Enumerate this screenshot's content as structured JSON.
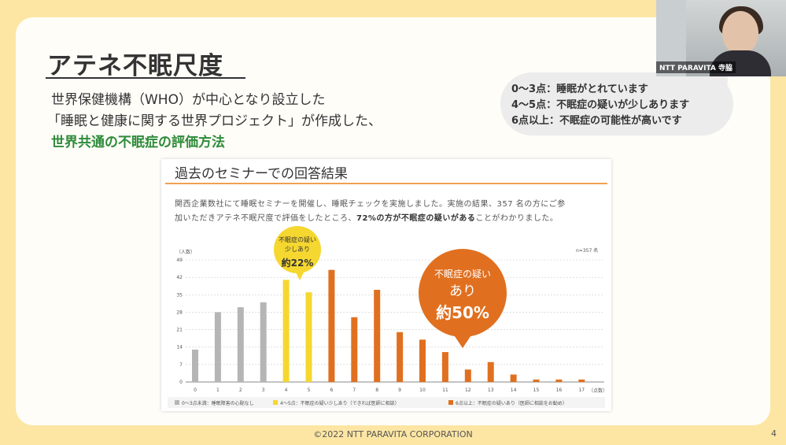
{
  "slide": {
    "title": "アテネ不眠尺度",
    "desc_line1": "世界保健機構（WHO）が中心となり設立した",
    "desc_line2": "「睡眠と健康に関する世界プロジェクト」が作成した、",
    "desc_line3": "世界共通の不眠症の評価方法",
    "footer": "©2022 NTT PARAVITA CORPORATION",
    "page_number": "4"
  },
  "scores": {
    "line1": "0～3点：睡眠がとれています",
    "line2": "4～5点：不眠症の疑いが少しあります",
    "line3": "6点以上：不眠症の可能性が高いです"
  },
  "video": {
    "name": "NTT PARAVITA 寺脇"
  },
  "panel": {
    "title": "過去のセミナーでの回答結果",
    "text1": "関西企業数社にて睡眠セミナーを開催し、睡眠チェックを実施しました。実施の結果、357 名の方にご参",
    "text2_pre": "加いただきアテネ不眠尺度で評価をしたところ、",
    "text2_bold": "72%の方が不眠症の疑いがある",
    "text2_post": "ことがわかりました。",
    "callout_small_l1": "不眠症の疑い",
    "callout_small_l2": "少しあり",
    "callout_small_pct": "約22%",
    "callout_big_l1": "不眠症の疑い",
    "callout_big_l2": "あり",
    "callout_big_pct": "約50%",
    "legend_gray": "0～3点未満：睡眠障害の心配なし",
    "legend_yellow": "4～5点：不眠症の疑い少しあり（できれば医師に相談）",
    "legend_orange": "6点以上：不眠症の疑いあり（医師に相談をお勧め）"
  },
  "chart_data": {
    "type": "bar",
    "ylabel": "（人数）",
    "xlabel": "（点数）",
    "n_label": "n=357 名",
    "ylim": [
      0,
      49
    ],
    "yticks": [
      0,
      7,
      14,
      21,
      28,
      35,
      42,
      49
    ],
    "categories": [
      "0",
      "1",
      "2",
      "3",
      "4",
      "5",
      "6",
      "7",
      "8",
      "9",
      "10",
      "11",
      "12",
      "13",
      "14",
      "15",
      "16",
      "17"
    ],
    "values": [
      13,
      28,
      30,
      32,
      41,
      36,
      45,
      26,
      37,
      20,
      17,
      12,
      5,
      8,
      3,
      1,
      1,
      1
    ],
    "groups": [
      "gray",
      "gray",
      "gray",
      "gray",
      "yellow",
      "yellow",
      "orange",
      "orange",
      "orange",
      "orange",
      "orange",
      "orange",
      "orange",
      "orange",
      "orange",
      "orange",
      "orange",
      "orange"
    ],
    "colors": {
      "gray": "#b5b5b5",
      "yellow": "#f5d730",
      "orange": "#e07020"
    }
  }
}
